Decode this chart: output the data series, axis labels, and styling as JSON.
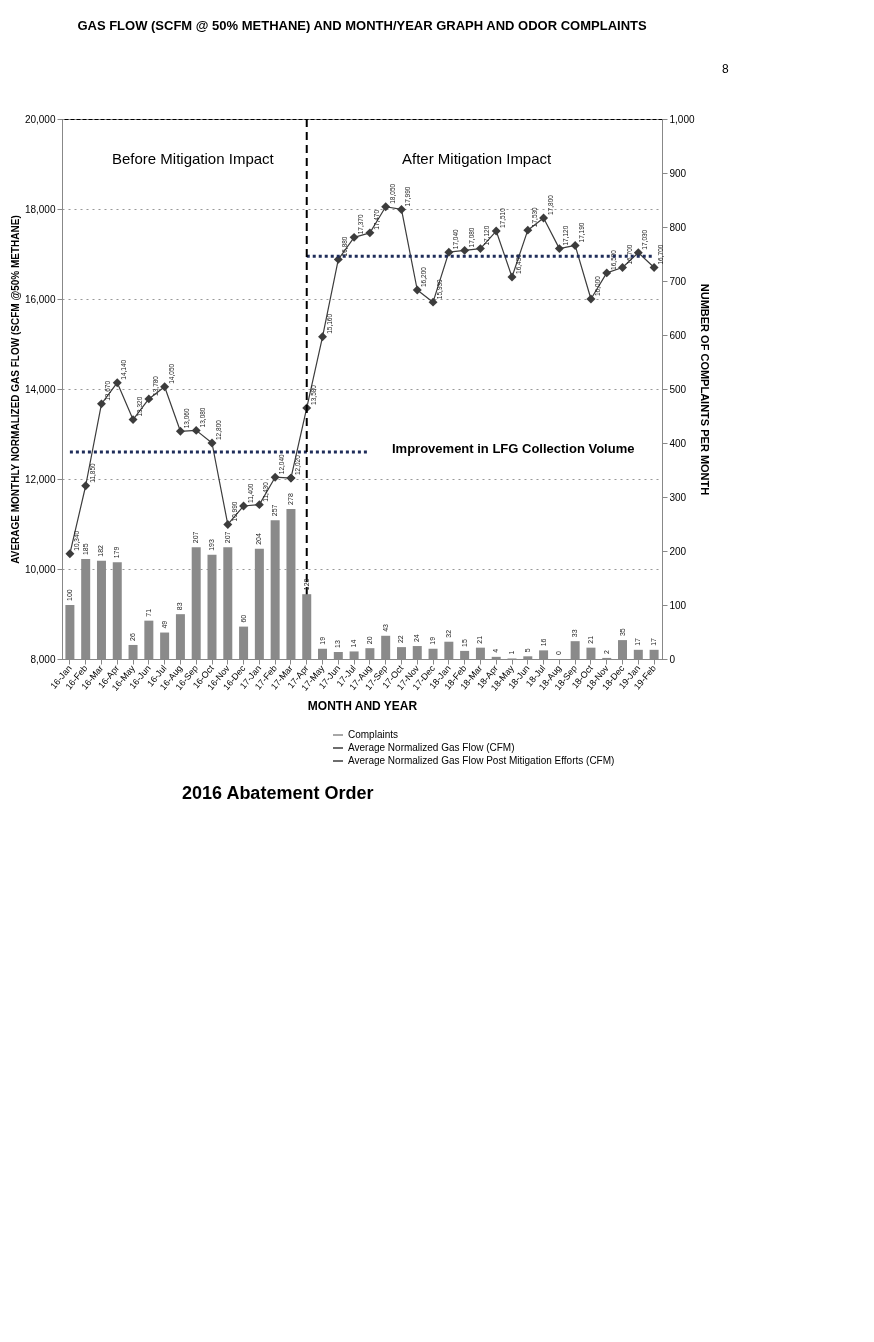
{
  "chart_data": {
    "type": "bar",
    "title": "GAS FLOW (SCFM @ 50% METHANE) AND MONTH/YEAR GRAPH AND ODOR COMPLAINTS",
    "xlabel": "MONTH AND YEAR",
    "ylabel": "AVERAGE MONTHLY NORMALIZED GAS FLOW (SCFM @50% METHANE)",
    "y2label": "NUMBER OF COMPLAINTS PER MONTH",
    "categories": [
      "16-Jan",
      "16-Feb",
      "16-Mar",
      "16-Apr",
      "16-May",
      "16-Jun",
      "16-Jul",
      "16-Aug",
      "16-Sep",
      "16-Oct",
      "16-Nov",
      "16-Dec",
      "17-Jan",
      "17-Feb",
      "17-Mar",
      "17-Apr",
      "17-May",
      "17-Jun",
      "17-Jul",
      "17-Aug",
      "17-Sep",
      "17-Oct",
      "17-Nov",
      "17-Dec",
      "18-Jan",
      "18-Feb",
      "18-Mar",
      "18-Apr",
      "18-May",
      "18-Jun",
      "18-Jul",
      "18-Aug",
      "18-Sep",
      "18-Oct",
      "18-Nov",
      "18-Dec",
      "19-Jan",
      "19-Feb"
    ],
    "series": [
      {
        "name": "Complaints",
        "axis": "y2",
        "color": "#8a8a8a",
        "values": [
          100,
          185,
          182,
          179,
          26,
          71,
          49,
          83,
          207,
          193,
          207,
          60,
          204,
          257,
          278,
          120,
          19,
          13,
          14,
          20,
          43,
          22,
          24,
          19,
          32,
          15,
          21,
          4,
          1,
          5,
          16,
          0,
          33,
          21,
          2,
          35,
          17,
          17
        ],
        "value_labels": [
          "100",
          "185",
          "182",
          "179",
          "26",
          "71",
          "49",
          "83",
          "207",
          "193",
          "207",
          "60",
          "204",
          "257",
          "278",
          "120",
          "19",
          "13",
          "14",
          "20",
          "43",
          "22",
          "24",
          "19",
          "32",
          "15",
          "21",
          "4",
          "1",
          "5",
          "16",
          "0",
          "33",
          "21",
          "2",
          "35",
          "17",
          "17"
        ]
      },
      {
        "name": "Average Normalized Gas Flow (CFM)",
        "type": "line",
        "color": "#3c3c3c",
        "marker": "diamond",
        "values": [
          10340,
          11850,
          13670,
          14140,
          13320,
          13780,
          14050,
          13060,
          13080,
          12800,
          10990,
          11400,
          11430,
          12040,
          12020,
          null,
          null,
          null,
          null,
          null,
          null,
          null,
          null,
          null,
          null,
          null,
          null,
          null,
          null,
          null,
          null,
          null,
          null,
          null,
          null,
          null,
          null,
          null
        ],
        "value_labels": [
          "10,340",
          "11,850",
          "13,670",
          "14,140",
          "13,320",
          "13,780",
          "14,050",
          "13,060",
          "13,080",
          "12,800",
          "10,990",
          "11,400",
          "11,430",
          "12,040",
          "12,020",
          null,
          null,
          null,
          null,
          null,
          null,
          null,
          null,
          null,
          null,
          null,
          null,
          null,
          null,
          null,
          null,
          null,
          null,
          null,
          null,
          null,
          null,
          null
        ]
      },
      {
        "name": "Average Normalized Gas Flow Post Mitigation Efforts (CFM)",
        "type": "line",
        "color": "#3c3c3c",
        "marker": "diamond",
        "values": [
          null,
          null,
          null,
          null,
          null,
          null,
          null,
          null,
          null,
          null,
          null,
          null,
          null,
          null,
          12020,
          13580,
          15160,
          16880,
          17370,
          17470,
          18050,
          17990,
          16200,
          15930,
          17040,
          17080,
          17120,
          17510,
          16490,
          17530,
          17800,
          17120,
          17190,
          16000,
          16580,
          16700,
          17030,
          16700
        ],
        "value_labels": [
          null,
          null,
          null,
          null,
          null,
          null,
          null,
          null,
          null,
          null,
          null,
          null,
          null,
          null,
          null,
          "13,580",
          "15,160",
          "16,880",
          "17,370",
          "17,470",
          "18,050",
          "17,990",
          "16,200",
          "15,930",
          "17,040",
          "17,080",
          "17,120",
          "17,510",
          "16,490",
          "17,530",
          "17,800",
          "17,120",
          "17,190",
          "16,000",
          "16,580",
          "16,700",
          "17,030",
          "16,700"
        ]
      },
      {
        "type": "line",
        "color": "#1f2d5a",
        "line_style": "dotted",
        "values": [
          12600,
          12600,
          12600,
          12600,
          12600,
          12600,
          12600,
          12600,
          12600,
          12600,
          12600,
          12600,
          12600,
          12600,
          12600,
          12600,
          12600,
          12600,
          12600,
          12600,
          null,
          null,
          null,
          null,
          null,
          null,
          null,
          null,
          null,
          null,
          null,
          null,
          null,
          null,
          null,
          null,
          null,
          null
        ]
      },
      {
        "type": "line",
        "color": "#1f2d5a",
        "line_style": "dotted",
        "values": [
          null,
          null,
          null,
          null,
          null,
          null,
          null,
          null,
          null,
          null,
          null,
          null,
          null,
          null,
          null,
          16950,
          16950,
          16950,
          16950,
          16950,
          16950,
          16950,
          16950,
          16950,
          16950,
          16950,
          16950,
          16950,
          16950,
          16950,
          16950,
          16950,
          16950,
          16950,
          16950,
          16950,
          16950,
          16950
        ]
      }
    ],
    "ylim": [
      8000,
      20000
    ],
    "yticks": [
      {
        "value": 8000,
        "label": "8,000"
      },
      {
        "value": 10000,
        "label": "10,000"
      },
      {
        "value": 12000,
        "label": "12,000"
      },
      {
        "value": 14000,
        "label": "14,000"
      },
      {
        "value": 16000,
        "label": "16,000"
      },
      {
        "value": 18000,
        "label": "18,000"
      },
      {
        "value": 20000,
        "label": "20,000"
      }
    ],
    "y2lim": [
      0,
      1000
    ],
    "y2ticks": [
      0,
      100,
      200,
      300,
      400,
      500,
      600,
      700,
      800,
      900,
      {
        "value": 1000,
        "label": "1,000"
      }
    ],
    "ref_lines": [
      {
        "axis": "x",
        "value": "17-Apr",
        "line_style": "dashed",
        "color": "#000000"
      }
    ],
    "annotations": [
      "Before Mitigation Impact",
      "After Mitigation Impact",
      "Improvement in LFG Collection Volume",
      "2016 Abatement Order",
      "8"
    ],
    "grid": "y",
    "legend": "bottom right"
  }
}
